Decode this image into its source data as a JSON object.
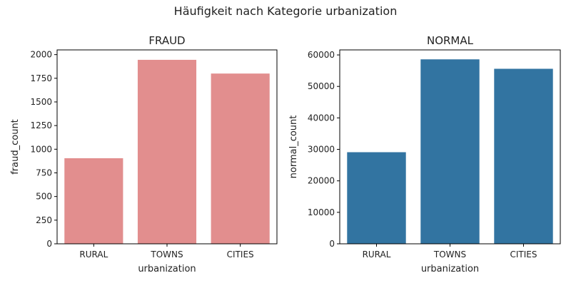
{
  "figure": {
    "suptitle": "Häufigkeit nach Kategorie urbanization"
  },
  "chart_data": [
    {
      "type": "bar",
      "title": "FRAUD",
      "xlabel": "urbanization",
      "ylabel": "fraud_count",
      "categories": [
        "RURAL",
        "TOWNS",
        "CITIES"
      ],
      "values": [
        905,
        1945,
        1800
      ],
      "ylim": [
        0,
        2050
      ],
      "yticks": [
        0,
        250,
        500,
        750,
        1000,
        1250,
        1500,
        1750,
        2000
      ],
      "color": "#e28e8e",
      "grid": false
    },
    {
      "type": "bar",
      "title": "NORMAL",
      "xlabel": "urbanization",
      "ylabel": "normal_count",
      "categories": [
        "RURAL",
        "TOWNS",
        "CITIES"
      ],
      "values": [
        29100,
        58600,
        55600
      ],
      "ylim": [
        0,
        61600
      ],
      "yticks": [
        0,
        10000,
        20000,
        30000,
        40000,
        50000,
        60000
      ],
      "color": "#3274a1",
      "grid": false
    }
  ]
}
